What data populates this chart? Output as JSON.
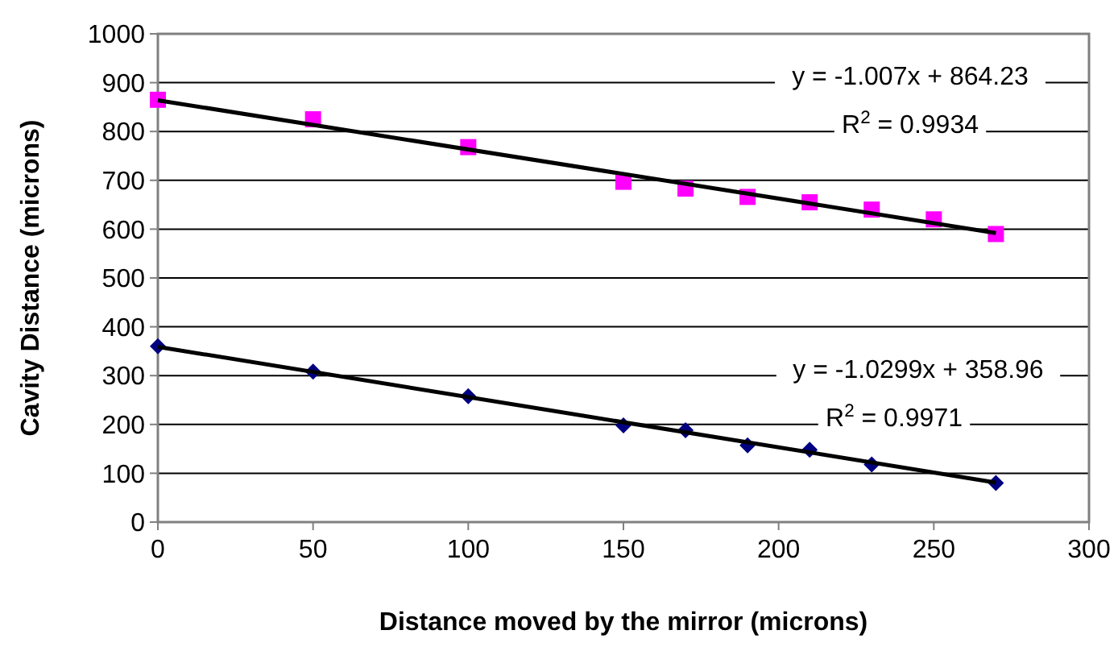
{
  "chart_data": {
    "type": "scatter",
    "xlabel": "Distance moved by the mirror (microns)",
    "ylabel": "Cavity Distance (microns)",
    "xlim": [
      0,
      300
    ],
    "xticks": [
      0,
      50,
      100,
      150,
      200,
      250,
      300
    ],
    "ylim": [
      0,
      1000
    ],
    "yticks": [
      0,
      100,
      200,
      300,
      400,
      500,
      600,
      700,
      800,
      900,
      1000
    ],
    "grid": "y",
    "series": [
      {
        "color": "#ff00ff",
        "marker": "square",
        "x": [
          0,
          50,
          100,
          150,
          170,
          190,
          210,
          230,
          250,
          270
        ],
        "values": [
          865,
          825,
          768,
          697,
          683,
          666,
          655,
          640,
          620,
          590
        ]
      },
      {
        "color": "#000080",
        "marker": "diamond",
        "x": [
          0,
          50,
          100,
          150,
          170,
          190,
          210,
          230,
          270
        ],
        "values": [
          360,
          308,
          258,
          198,
          188,
          157,
          148,
          118,
          80
        ]
      },
      {
        "type": "line",
        "color": "#000000",
        "marker": "none",
        "x": [
          0,
          270
        ],
        "values": [
          864,
          592
        ]
      },
      {
        "type": "line",
        "color": "#000000",
        "marker": "none",
        "x": [
          0,
          270
        ],
        "values": [
          359,
          81
        ]
      }
    ],
    "annotations": [
      "y = -1.007x + 864.23",
      "R$^{2}$ = 0.9934",
      "y = -1.0299x + 358.96",
      "R$^{2}$ = 0.9971"
    ]
  }
}
